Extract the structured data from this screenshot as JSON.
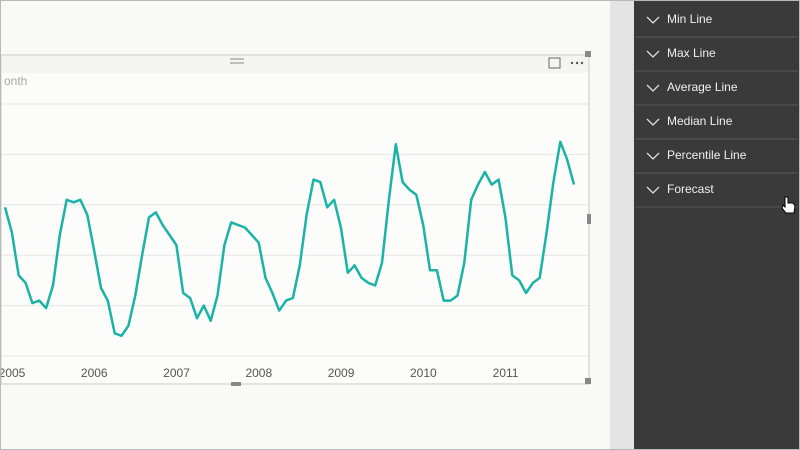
{
  "chart_data": {
    "type": "line",
    "title": "onth",
    "categories": [
      "2005",
      null,
      null,
      null,
      null,
      null,
      null,
      null,
      null,
      null,
      null,
      null,
      "2006",
      null,
      null,
      null,
      null,
      null,
      null,
      null,
      null,
      null,
      null,
      null,
      "2007",
      null,
      null,
      null,
      null,
      null,
      null,
      null,
      null,
      null,
      null,
      null,
      "2008",
      null,
      null,
      null,
      null,
      null,
      null,
      null,
      null,
      null,
      null,
      null,
      "2009",
      null,
      null,
      null,
      null,
      null,
      null,
      null,
      null,
      null,
      null,
      null,
      "2010",
      null,
      null,
      null,
      null,
      null,
      null,
      null,
      null,
      null,
      null,
      null,
      "2011",
      null,
      null,
      null,
      null,
      null,
      null,
      null,
      null,
      null,
      null,
      null
    ],
    "values": [
      59,
      49,
      32,
      29,
      21,
      22,
      19,
      28,
      48,
      62,
      61,
      62,
      56,
      42,
      27,
      22,
      9,
      8,
      12,
      24,
      40,
      55,
      57,
      52,
      48,
      44,
      25,
      23,
      15,
      20,
      14,
      24,
      44,
      53,
      52,
      51,
      48,
      45,
      31,
      25,
      18,
      22,
      23,
      36,
      56,
      70,
      69,
      59,
      62,
      51,
      33,
      36,
      31,
      29,
      28,
      37,
      62,
      84,
      69,
      66,
      64,
      52,
      34,
      34,
      22,
      22,
      24,
      37,
      62,
      68,
      73,
      68,
      70,
      55,
      32,
      30,
      25,
      29,
      31,
      49,
      69,
      85,
      78,
      68
    ],
    "color": "#1ab3a6",
    "ylim": [
      0,
      100
    ],
    "gridlines": [
      0,
      20,
      40,
      60,
      80,
      100
    ]
  },
  "format_panel": {
    "items": [
      "Min Line",
      "Max Line",
      "Average Line",
      "Median Line",
      "Percentile Line",
      "Forecast"
    ]
  }
}
